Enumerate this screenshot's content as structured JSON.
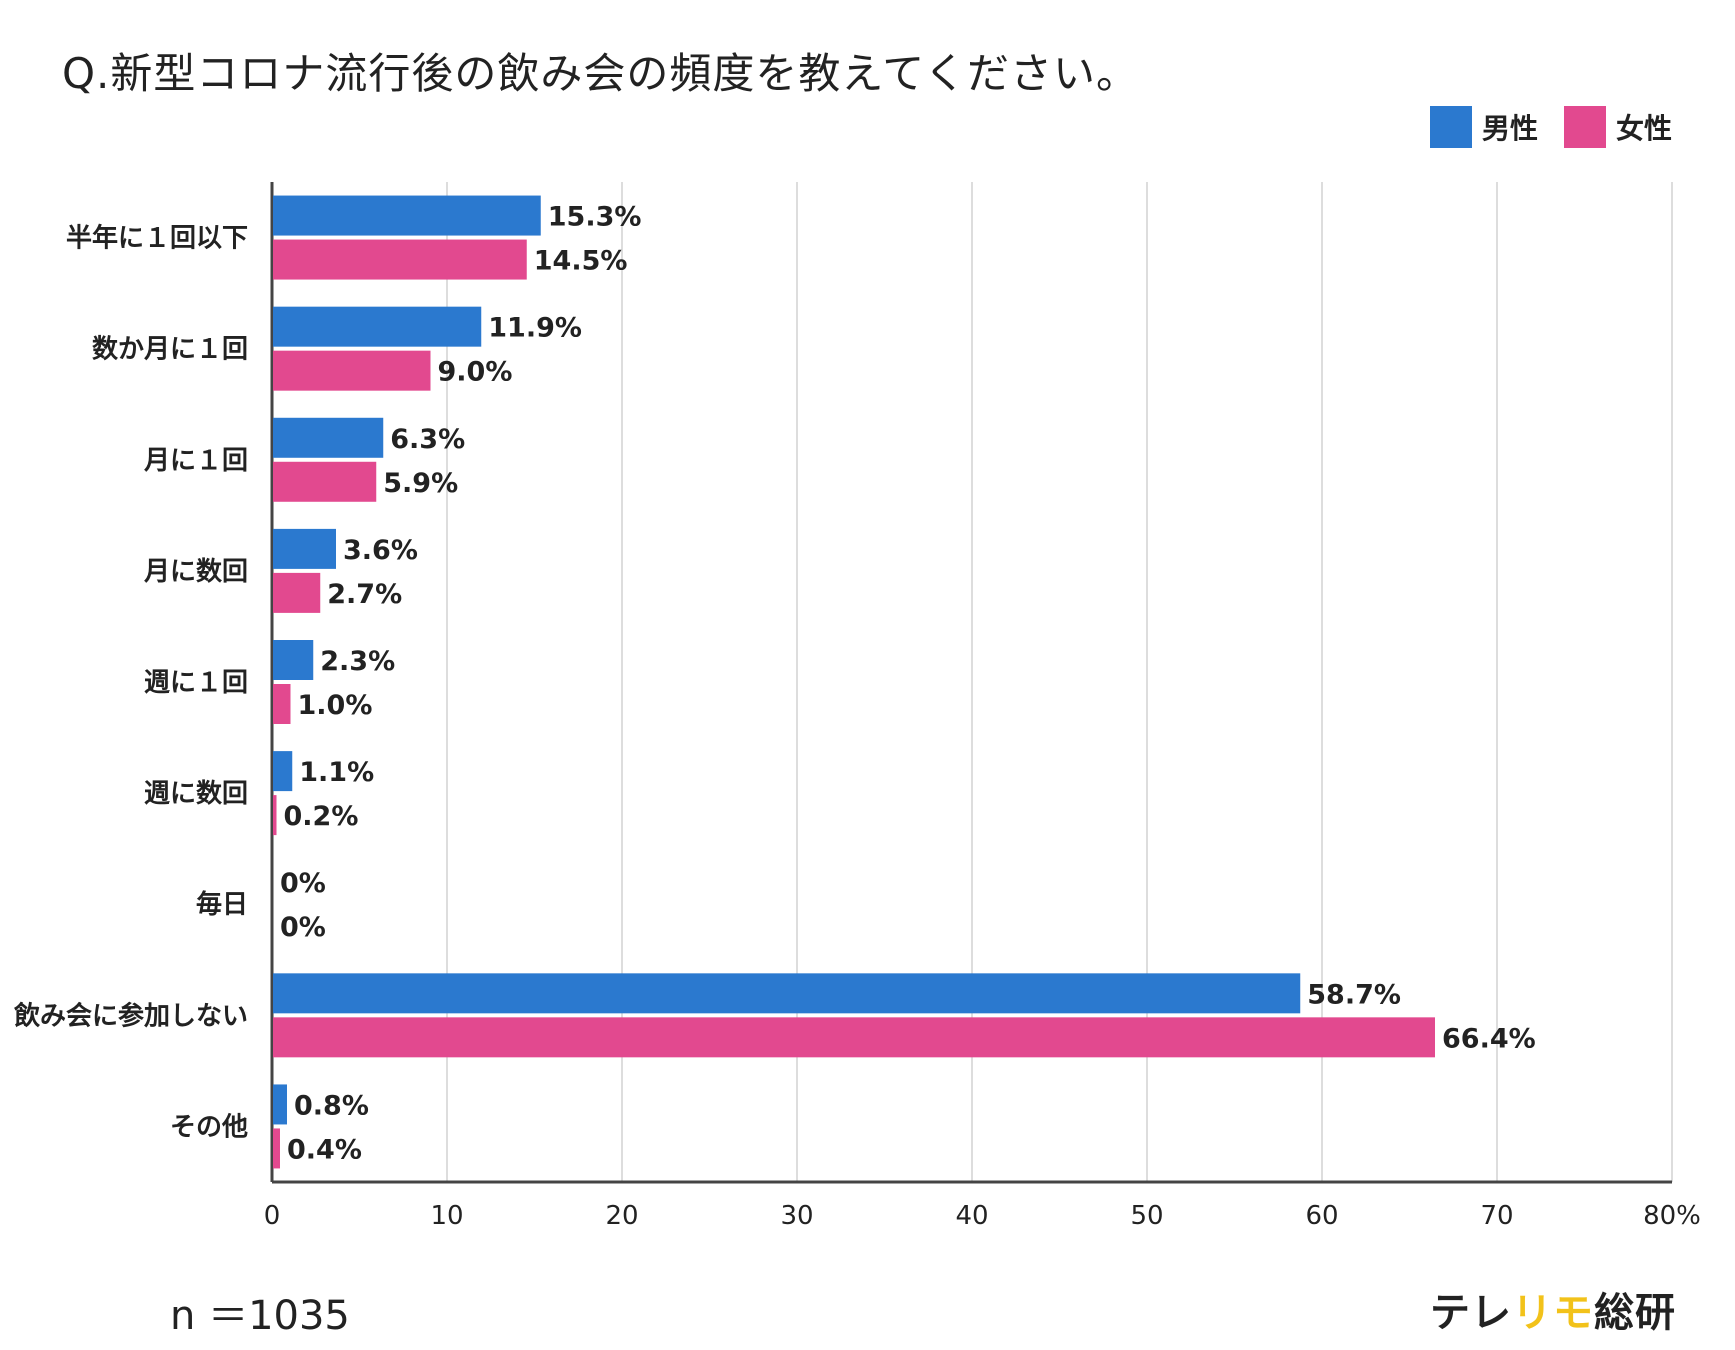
{
  "title": "Q.新型コロナ流行後の飲み会の頻度を教えてください。",
  "legend": [
    {
      "name": "男性",
      "color": "#2b79cf"
    },
    {
      "name": "女性",
      "color": "#e2498f"
    }
  ],
  "sample_size": "n ＝1035",
  "brand": {
    "part1": "テレ",
    "part2": "リモ",
    "part3": "総研",
    "highlight_color": "#f2c21a"
  },
  "chart_data": {
    "type": "bar",
    "orientation": "horizontal",
    "categories": [
      "半年に１回以下",
      "数か月に１回",
      "月に１回",
      "月に数回",
      "週に１回",
      "週に数回",
      "毎日",
      "飲み会に参加しない",
      "その他"
    ],
    "series": [
      {
        "name": "男性",
        "color": "#2b79cf",
        "values": [
          15.3,
          11.9,
          6.3,
          3.6,
          2.3,
          1.1,
          0,
          58.7,
          0.8
        ],
        "labels": [
          "15.3%",
          "11.9%",
          "6.3%",
          "3.6%",
          "2.3%",
          "1.1%",
          "0%",
          "58.7%",
          "0.8%"
        ]
      },
      {
        "name": "女性",
        "color": "#e2498f",
        "values": [
          14.5,
          9.0,
          5.9,
          2.7,
          1.0,
          0.2,
          0,
          66.4,
          0.4
        ],
        "labels": [
          "14.5%",
          "9.0%",
          "5.9%",
          "2.7%",
          "1.0%",
          "0.2%",
          "0%",
          "66.4%",
          "0.4%"
        ]
      }
    ],
    "xlim": [
      0,
      80
    ],
    "xticks": [
      "0",
      "10",
      "20",
      "30",
      "40",
      "50",
      "60",
      "70",
      "80%"
    ],
    "grid": true,
    "legend_position": "top-right"
  }
}
